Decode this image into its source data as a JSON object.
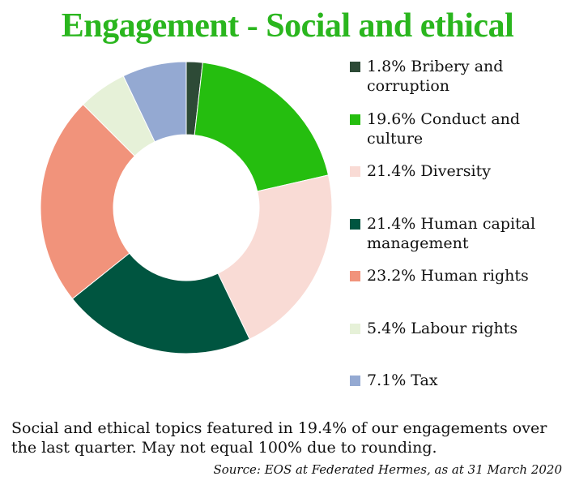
{
  "title": "Engagement - Social and ethical",
  "title_color": "#2ab61e",
  "chart_data": {
    "type": "pie",
    "donut": true,
    "title": "Engagement - Social and ethical",
    "legend_position": "right",
    "slices": [
      {
        "label": "Bribery and corruption",
        "value": 1.8,
        "value_label": "1.8%",
        "color": "#2d4a36"
      },
      {
        "label": "Conduct and culture",
        "value": 19.6,
        "value_label": "19.6%",
        "color": "#25be0f"
      },
      {
        "label": "Diversity",
        "value": 21.4,
        "value_label": "21.4%",
        "color": "#f9dbd5"
      },
      {
        "label": "Human capital management",
        "value": 21.4,
        "value_label": "21.4%",
        "color": "#005540"
      },
      {
        "label": "Human rights",
        "value": 23.2,
        "value_label": "23.2%",
        "color": "#f1937b"
      },
      {
        "label": "Labour rights",
        "value": 5.4,
        "value_label": "5.4%",
        "color": "#e6f1d8"
      },
      {
        "label": "Tax",
        "value": 7.1,
        "value_label": "7.1%",
        "color": "#94a9d2"
      }
    ]
  },
  "legend_items": [
    {
      "text": "1.8% Bribery and corruption"
    },
    {
      "text": "19.6% Conduct and culture"
    },
    {
      "text": "21.4% Diversity"
    },
    {
      "text": "21.4% Human capital management"
    },
    {
      "text": "23.2% Human rights"
    },
    {
      "text": "5.4% Labour rights"
    },
    {
      "text": "7.1% Tax"
    }
  ],
  "footnote": "Social and ethical topics featured in 19.4% of our engagements over the last quarter. May not equal 100% due to rounding.",
  "source": "Source: EOS at Federated Hermes, as at 31 March 2020"
}
